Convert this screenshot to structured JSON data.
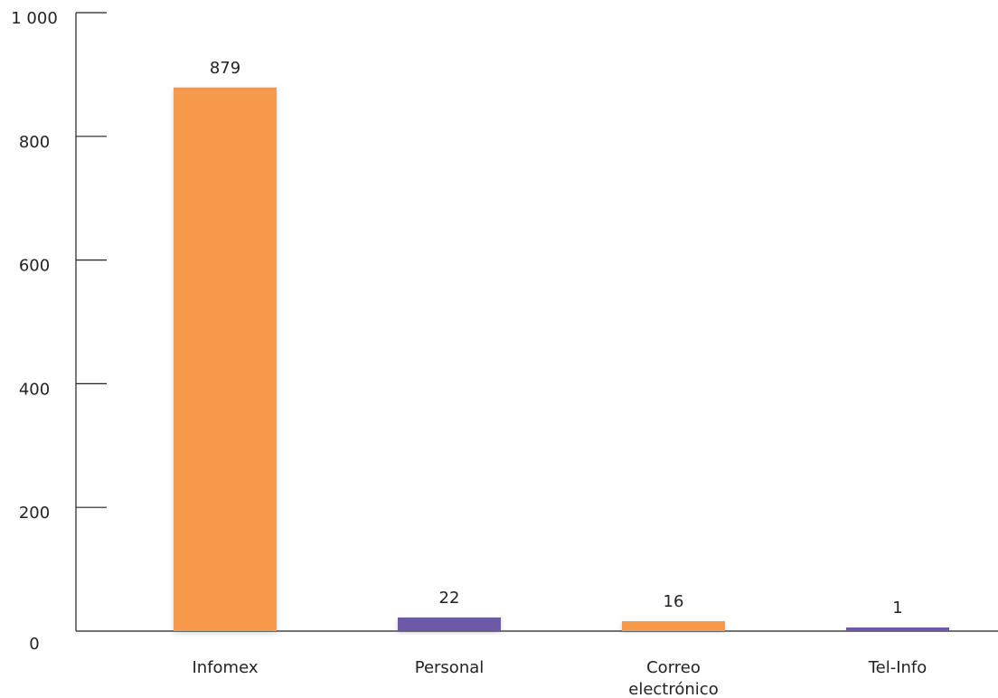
{
  "chart_data": {
    "type": "bar",
    "title": "",
    "xlabel": "",
    "ylabel": "",
    "ylim": [
      0,
      1000
    ],
    "yticks": [
      0,
      200,
      400,
      600,
      800,
      1000
    ],
    "ytick_labels": [
      "0",
      "200",
      "400",
      "600",
      "800",
      "1 000"
    ],
    "grid": false,
    "categories": [
      [
        "Infomex"
      ],
      [
        "Personal"
      ],
      [
        "Correo",
        "electrónico"
      ],
      [
        "Tel-Info"
      ]
    ],
    "values": [
      879,
      22,
      16,
      1
    ],
    "data_labels": [
      "879",
      "22",
      "16",
      "1"
    ],
    "colors": [
      "#F7994B",
      "#6E58A8",
      "#F7994B",
      "#6E58A8"
    ]
  }
}
